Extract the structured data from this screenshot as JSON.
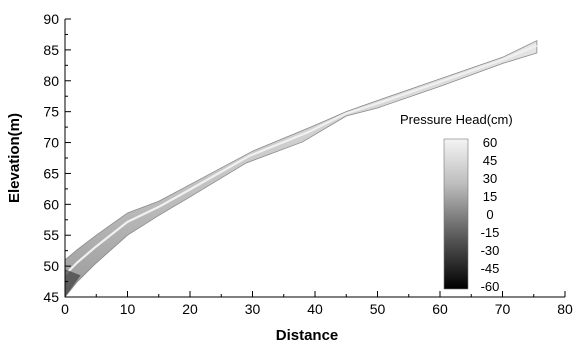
{
  "chart_data": {
    "type": "area",
    "xlabel": "Distance",
    "ylabel": "Elevation(m)",
    "xlim": [
      0,
      80
    ],
    "ylim": [
      45,
      90
    ],
    "xticks": [
      0,
      10,
      20,
      30,
      40,
      50,
      60,
      70,
      80
    ],
    "yticks": [
      45,
      50,
      55,
      60,
      65,
      70,
      75,
      80,
      85,
      90
    ],
    "grid": false,
    "series": [
      {
        "upper": [
          [
            0,
            51
          ],
          [
            2,
            52.7
          ],
          [
            5,
            55
          ],
          [
            10,
            58.6
          ],
          [
            15,
            60.5
          ],
          [
            20,
            63.2
          ],
          [
            30,
            68.6
          ],
          [
            40,
            72.8
          ],
          [
            45,
            75
          ],
          [
            50,
            76.8
          ],
          [
            60,
            80.3
          ],
          [
            70,
            83.8
          ],
          [
            75.5,
            86.5
          ]
        ],
        "lower": [
          [
            0,
            45
          ],
          [
            2,
            47.5
          ],
          [
            5,
            50.5
          ],
          [
            10,
            55
          ],
          [
            15,
            58.2
          ],
          [
            20,
            61.2
          ],
          [
            29,
            66.7
          ],
          [
            38,
            70.1
          ],
          [
            45,
            74.3
          ],
          [
            50,
            75.6
          ],
          [
            60,
            79.1
          ],
          [
            70,
            82.8
          ],
          [
            75.5,
            84.5
          ]
        ]
      }
    ],
    "colorbar": {
      "title": "Pressure Head(cm)",
      "ticks": [
        "60",
        "45",
        "30",
        "15",
        "0",
        "-15",
        "-30",
        "-45",
        "-60"
      ],
      "range": [
        -60,
        60
      ],
      "colors": {
        "min": "#000000",
        "max": "#f4f4f4"
      }
    }
  }
}
